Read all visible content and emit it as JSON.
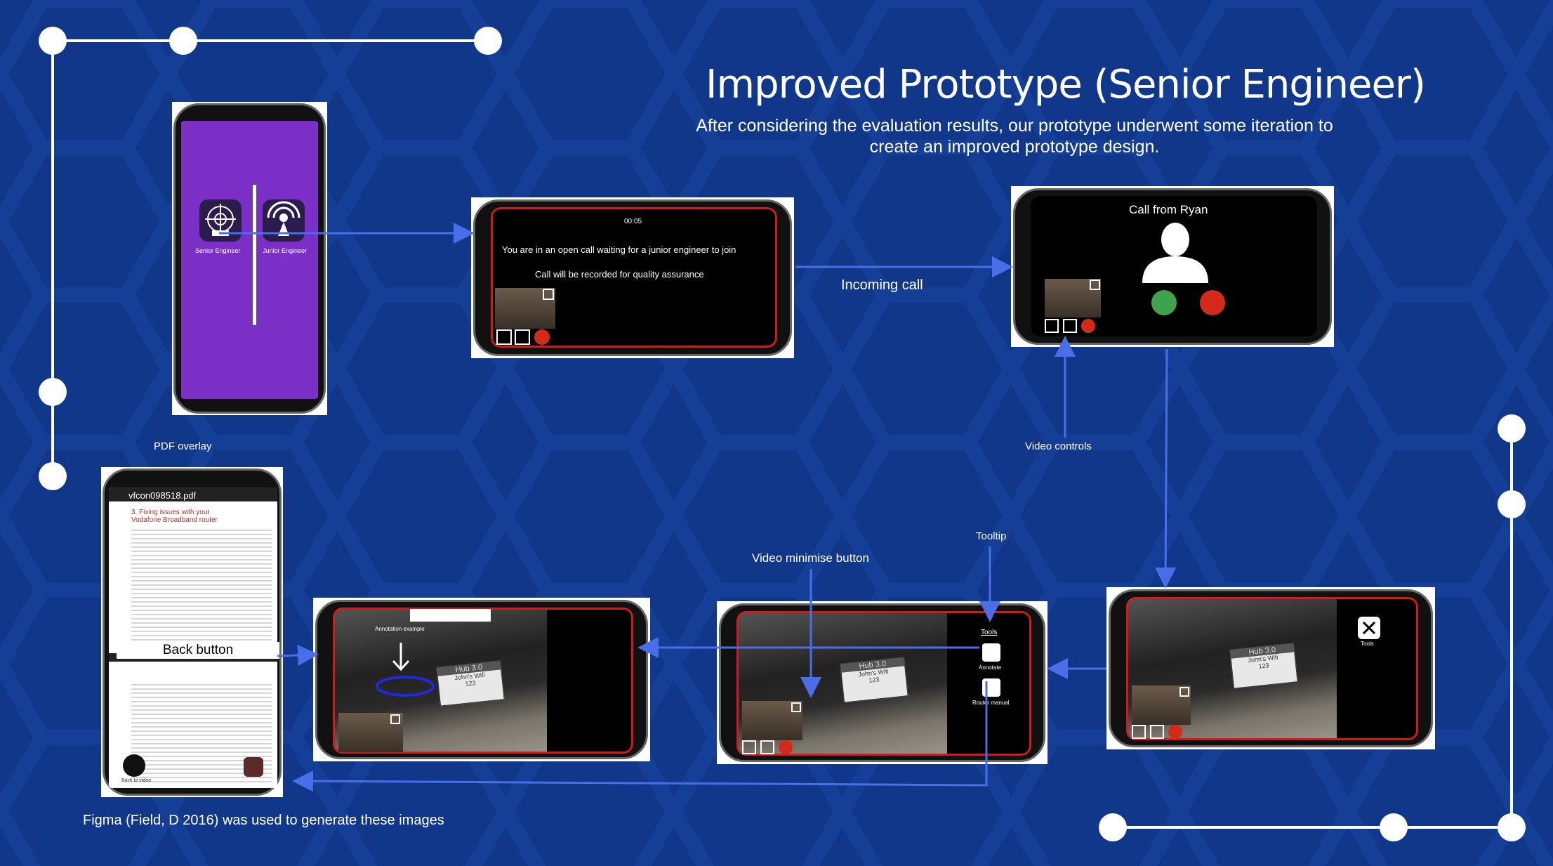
{
  "title": "Improved Prototype (Senior Engineer)",
  "subtitle": "After considering the evaluation results, our prototype underwent some iteration to create an improved prototype design.",
  "labels": {
    "incoming_call": "Incoming call",
    "video_controls": "Video controls",
    "pdf_overlay": "PDF overlay",
    "tooltip": "Tooltip",
    "video_minimise_button": "Video minimise button",
    "back_button": "Back button",
    "figma_credit": "Figma (Field, D 2016) was used to generate these images"
  },
  "home_screen": {
    "app1": "Senior Engineer",
    "app2": "Junior Engineer"
  },
  "waiting_screen": {
    "timer": "00:05",
    "message": "You are in an open call waiting for a junior engineer to join",
    "recording_notice": "Call will be recorded for quality assurance"
  },
  "call_screen": {
    "caller": "Call from Ryan"
  },
  "tools_screen": {
    "tools_label": "Tools"
  },
  "tooltip_screen": {
    "tools_label": "Tools",
    "annotate_label": "Annotate",
    "router_manual_label": "Router manual"
  },
  "annotation_screen": {
    "example_label": "Annotation example"
  },
  "pdf_screen": {
    "filename": "vfcon098518.pdf",
    "heading": "3. Fixing issues with your Vodafone Broadband router",
    "back_to_video": "Back to video"
  },
  "router": {
    "brand": "Hub 3.0",
    "wifi_label": "John's Wifi",
    "wifi_number": "123"
  },
  "colors": {
    "background": "#10378a",
    "arrow": "#4a6ee8",
    "accent_red": "#d21a1a",
    "app_purple": "#7b2fc6",
    "accept_green": "#3fa34d"
  }
}
